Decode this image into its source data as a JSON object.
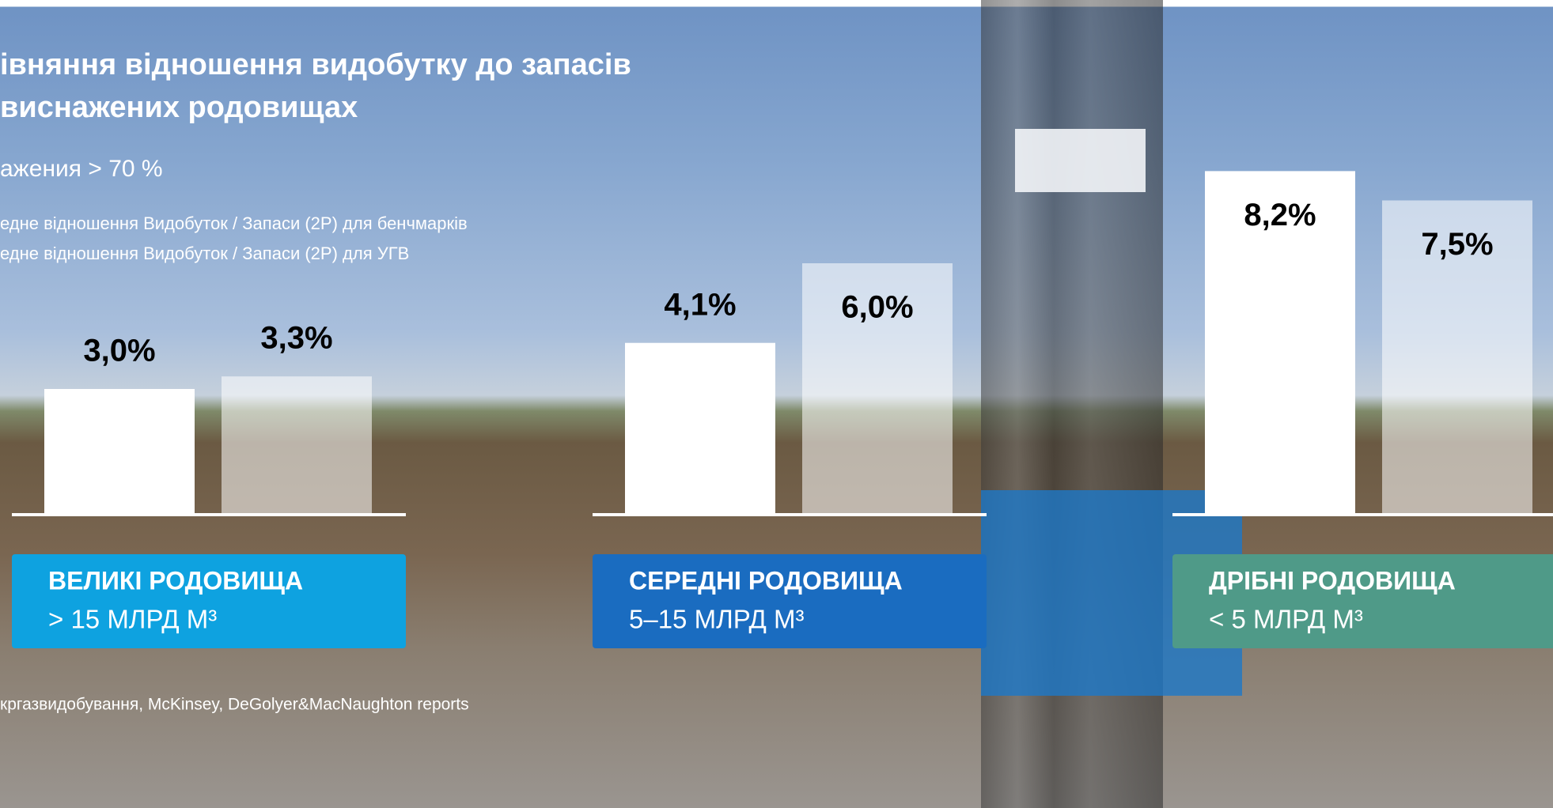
{
  "chart_data": {
    "type": "bar",
    "title": [
      "івняння відношення видобутку до запасів",
      "виснажених родовищах"
    ],
    "subtitle": "ажения > 70 %",
    "categories": [
      "ВЕЛИКІ РОДОВИЩА",
      "СЕРЕДНІ РОДОВИЩА",
      "ДРІБНІ РОДОВИЩА"
    ],
    "category_sublabels": [
      "> 15 МЛРД М³",
      "5–15 МЛРД М³",
      "< 5 МЛРД М³"
    ],
    "category_colors": [
      "#0ea2e0",
      "#1a6cc0",
      "#4f9a88"
    ],
    "series": [
      {
        "name": "едне відношення Видобуток / Запаси (2P) для бенчмарків",
        "color": "#ffffff",
        "values": [
          3.0,
          4.1,
          8.2
        ],
        "value_labels": [
          "3,0%",
          "4,1%",
          "8,2%"
        ]
      },
      {
        "name": "едне відношення Видобуток / Запаси (2P) для УГВ",
        "color": "rgba(255,255,255,0.55)",
        "values": [
          3.3,
          6.0,
          7.5
        ],
        "value_labels": [
          "3,3%",
          "6,0%",
          "7,5%"
        ]
      }
    ],
    "source": "кргазвидобування, McKinsey, DeGolyer&MacNaughton reports"
  }
}
